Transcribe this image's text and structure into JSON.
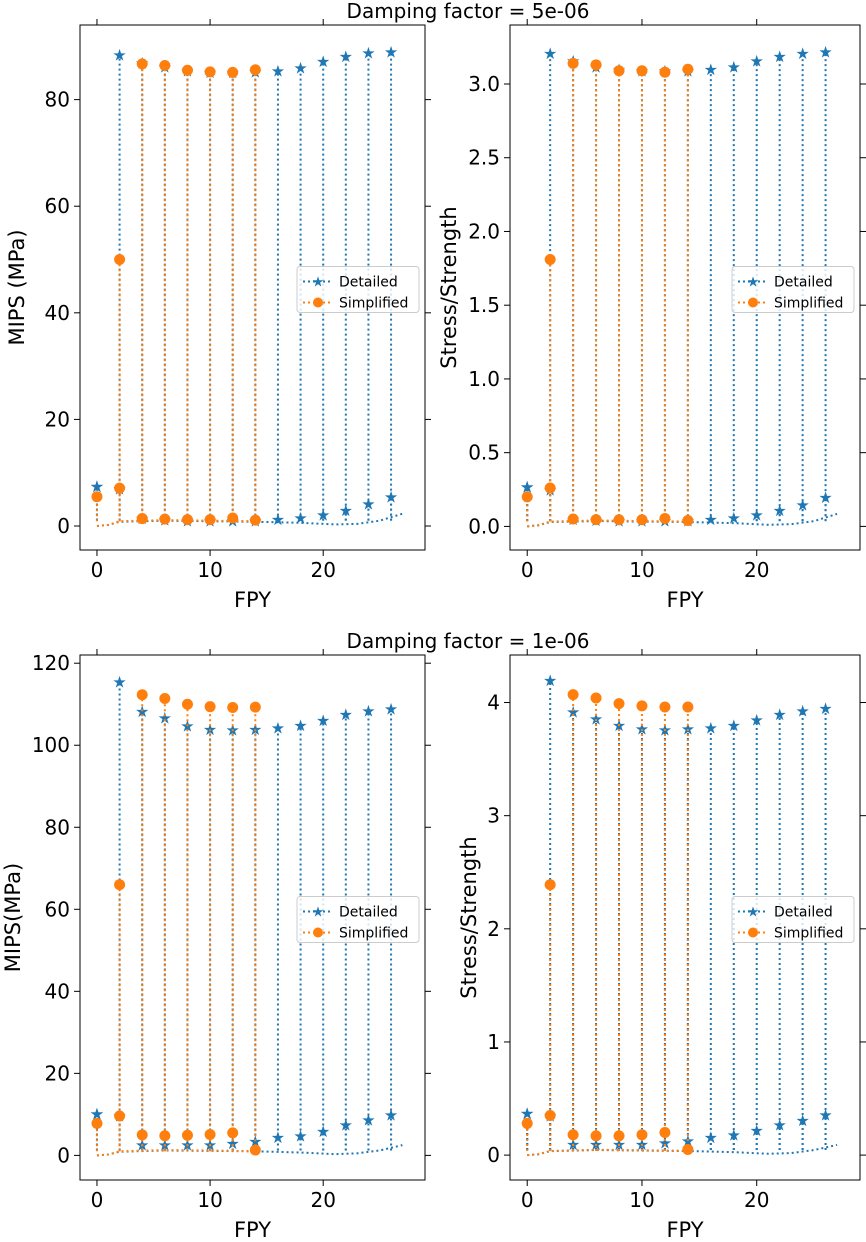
{
  "figure_titles": [
    "Damping factor = 5e-06",
    "Damping factor = 1e-06"
  ],
  "legend_entries": [
    "Detailed",
    "Simplified"
  ],
  "colors": {
    "detailed": "#1f77b4",
    "simplified": "#ff7f0e"
  },
  "chart_data": [
    {
      "type": "line",
      "panel": "top-left",
      "xlabel": "FPY",
      "ylabel": "MIPS (MPa)",
      "xlim": [
        -1.5,
        29
      ],
      "ylim": [
        -4.5,
        94
      ],
      "xticks": [
        0,
        10,
        20
      ],
      "yticks": [
        0,
        20,
        40,
        60,
        80
      ],
      "xtick_labels": [
        "0",
        "10",
        "20"
      ],
      "ytick_labels": [
        "0",
        "20",
        "40",
        "60",
        "80"
      ],
      "legend": "center-right",
      "grid": false,
      "detailed": {
        "name": "Detailed",
        "spikes": [
          [
            0,
            7.5
          ],
          [
            2,
            88.5
          ],
          [
            4,
            87
          ],
          [
            6,
            86.2
          ],
          [
            8,
            85.5
          ],
          [
            10,
            85.2
          ],
          [
            12,
            85.2
          ],
          [
            14,
            85.3
          ],
          [
            16,
            85.5
          ],
          [
            18,
            86
          ],
          [
            20,
            87.2
          ],
          [
            22,
            88.2
          ],
          [
            24,
            88.8
          ],
          [
            26,
            89
          ]
        ],
        "spike_baseline": 1.0,
        "secondary": [
          [
            0,
            7.5
          ],
          [
            2,
            7.0
          ],
          [
            4,
            1.5
          ],
          [
            6,
            1.2
          ],
          [
            8,
            1.0
          ],
          [
            10,
            1.0
          ],
          [
            12,
            1.0
          ],
          [
            14,
            1.0
          ],
          [
            16,
            1.3
          ],
          [
            18,
            1.6
          ],
          [
            20,
            2.2
          ],
          [
            22,
            3.0
          ],
          [
            24,
            4.2
          ],
          [
            26,
            5.5
          ]
        ],
        "base": [
          [
            0,
            0
          ],
          [
            1,
            0.2
          ],
          [
            2,
            0.8
          ],
          [
            6,
            1.0
          ],
          [
            10,
            0.9
          ],
          [
            14,
            0.8
          ],
          [
            18,
            0.6
          ],
          [
            21,
            0.3
          ],
          [
            23,
            0.4
          ],
          [
            25,
            1.0
          ],
          [
            27,
            2.3
          ]
        ]
      },
      "simplified": {
        "name": "Simplified",
        "spikes": [
          [
            4,
            86.7
          ],
          [
            6,
            86.4
          ],
          [
            8,
            85.5
          ],
          [
            10,
            85.2
          ],
          [
            12,
            85.1
          ],
          [
            14,
            85.6
          ]
        ],
        "secondary": [
          [
            0,
            5.5
          ],
          [
            2,
            50
          ],
          [
            2,
            7.1
          ],
          [
            4,
            1.4
          ],
          [
            6,
            1.3
          ],
          [
            8,
            1.2
          ],
          [
            10,
            1.2
          ],
          [
            12,
            1.5
          ],
          [
            14,
            1.1
          ]
        ],
        "base": [
          [
            0,
            0
          ],
          [
            1,
            0.2
          ],
          [
            2,
            0.9
          ],
          [
            6,
            1.1
          ],
          [
            10,
            1.0
          ],
          [
            14,
            0.9
          ]
        ]
      }
    },
    {
      "type": "line",
      "panel": "top-right",
      "xlabel": "FPY",
      "ylabel": "Stress/Strength",
      "xlim": [
        -1.5,
        29
      ],
      "ylim": [
        -0.16,
        3.4
      ],
      "xticks": [
        0,
        10,
        20
      ],
      "yticks": [
        0,
        0.5,
        1,
        1.5,
        2,
        2.5,
        3
      ],
      "xtick_labels": [
        "0",
        "10",
        "20"
      ],
      "ytick_labels": [
        "0.0",
        "0.5",
        "1.0",
        "1.5",
        "2.0",
        "2.5",
        "3.0"
      ],
      "legend": "center-right",
      "grid": false,
      "detailed": {
        "name": "Detailed",
        "spikes": [
          [
            0,
            0.27
          ],
          [
            2,
            3.21
          ],
          [
            4,
            3.16
          ],
          [
            6,
            3.12
          ],
          [
            8,
            3.1
          ],
          [
            10,
            3.09
          ],
          [
            12,
            3.09
          ],
          [
            14,
            3.09
          ],
          [
            16,
            3.1
          ],
          [
            18,
            3.12
          ],
          [
            20,
            3.16
          ],
          [
            22,
            3.19
          ],
          [
            24,
            3.21
          ],
          [
            26,
            3.22
          ]
        ],
        "spike_baseline": 0.036,
        "secondary": [
          [
            0,
            0.27
          ],
          [
            2,
            0.25
          ],
          [
            4,
            0.05
          ],
          [
            6,
            0.045
          ],
          [
            8,
            0.04
          ],
          [
            10,
            0.04
          ],
          [
            12,
            0.04
          ],
          [
            14,
            0.04
          ],
          [
            16,
            0.05
          ],
          [
            18,
            0.06
          ],
          [
            20,
            0.08
          ],
          [
            22,
            0.11
          ],
          [
            24,
            0.15
          ],
          [
            26,
            0.2
          ]
        ],
        "base": [
          [
            0,
            0
          ],
          [
            1,
            0.008
          ],
          [
            2,
            0.03
          ],
          [
            6,
            0.036
          ],
          [
            10,
            0.033
          ],
          [
            14,
            0.03
          ],
          [
            18,
            0.022
          ],
          [
            21,
            0.011
          ],
          [
            23,
            0.015
          ],
          [
            25,
            0.036
          ],
          [
            27,
            0.085
          ]
        ]
      },
      "simplified": {
        "name": "Simplified",
        "spikes": [
          [
            4,
            3.14
          ],
          [
            6,
            3.13
          ],
          [
            8,
            3.09
          ],
          [
            10,
            3.09
          ],
          [
            12,
            3.08
          ],
          [
            14,
            3.1
          ]
        ],
        "secondary": [
          [
            0,
            0.2
          ],
          [
            2,
            1.81
          ],
          [
            2,
            0.26
          ],
          [
            4,
            0.05
          ],
          [
            6,
            0.046
          ],
          [
            8,
            0.045
          ],
          [
            10,
            0.045
          ],
          [
            12,
            0.054
          ],
          [
            14,
            0.04
          ]
        ],
        "base": [
          [
            0,
            0
          ],
          [
            1,
            0.008
          ],
          [
            2,
            0.033
          ],
          [
            6,
            0.04
          ],
          [
            10,
            0.036
          ],
          [
            14,
            0.033
          ]
        ]
      }
    },
    {
      "type": "line",
      "panel": "bottom-left",
      "xlabel": "FPY",
      "ylabel": "MIPS(MPa)",
      "xlim": [
        -1.5,
        29
      ],
      "ylim": [
        -6,
        122
      ],
      "xticks": [
        0,
        10,
        20
      ],
      "yticks": [
        0,
        20,
        40,
        60,
        80,
        100,
        120
      ],
      "xtick_labels": [
        "0",
        "10",
        "20"
      ],
      "ytick_labels": [
        "0",
        "20",
        "40",
        "60",
        "80",
        "100",
        "120"
      ],
      "legend": "center-right",
      "grid": false,
      "detailed": {
        "name": "Detailed",
        "spikes": [
          [
            0,
            10.2
          ],
          [
            2,
            115.5
          ],
          [
            4,
            108.3
          ],
          [
            6,
            106.8
          ],
          [
            8,
            104.8
          ],
          [
            10,
            104.0
          ],
          [
            12,
            103.8
          ],
          [
            14,
            104.0
          ],
          [
            16,
            104.3
          ],
          [
            18,
            104.9
          ],
          [
            20,
            106.2
          ],
          [
            22,
            107.6
          ],
          [
            24,
            108.5
          ],
          [
            26,
            109.0
          ]
        ],
        "spike_baseline": 1.2,
        "secondary": [
          [
            0,
            10.2
          ],
          [
            2,
            9.7
          ],
          [
            4,
            2.6
          ],
          [
            6,
            2.6
          ],
          [
            8,
            2.6
          ],
          [
            10,
            2.7
          ],
          [
            12,
            3.0
          ],
          [
            14,
            3.5
          ],
          [
            16,
            4.5
          ],
          [
            18,
            4.8
          ],
          [
            20,
            6.0
          ],
          [
            22,
            7.5
          ],
          [
            24,
            8.8
          ],
          [
            26,
            10.0
          ]
        ],
        "base": [
          [
            0,
            0
          ],
          [
            1,
            0.2
          ],
          [
            2,
            0.9
          ],
          [
            6,
            1.2
          ],
          [
            10,
            1.1
          ],
          [
            14,
            1.0
          ],
          [
            18,
            0.7
          ],
          [
            21,
            0.3
          ],
          [
            23,
            0.5
          ],
          [
            25,
            1.2
          ],
          [
            27,
            2.5
          ]
        ]
      },
      "simplified": {
        "name": "Simplified",
        "spikes": [
          [
            4,
            112.3
          ],
          [
            6,
            111.4
          ],
          [
            8,
            110.0
          ],
          [
            10,
            109.4
          ],
          [
            12,
            109.2
          ],
          [
            14,
            109.3
          ]
        ],
        "secondary": [
          [
            0,
            7.8
          ],
          [
            2,
            66.0
          ],
          [
            2,
            9.6
          ],
          [
            4,
            5.0
          ],
          [
            6,
            4.8
          ],
          [
            8,
            4.9
          ],
          [
            10,
            5.1
          ],
          [
            12,
            5.5
          ],
          [
            14,
            1.3
          ]
        ],
        "base": [
          [
            0,
            0
          ],
          [
            1,
            0.2
          ],
          [
            2,
            1.0
          ],
          [
            6,
            1.3
          ],
          [
            10,
            1.2
          ],
          [
            14,
            1.0
          ]
        ]
      }
    },
    {
      "type": "line",
      "panel": "bottom-right",
      "xlabel": "FPY",
      "ylabel": "Stress/Strength",
      "xlim": [
        -1.5,
        29
      ],
      "ylim": [
        -0.22,
        4.42
      ],
      "xticks": [
        0,
        10,
        20
      ],
      "yticks": [
        0,
        1,
        2,
        3,
        4
      ],
      "xtick_labels": [
        "0",
        "10",
        "20"
      ],
      "ytick_labels": [
        "0",
        "1",
        "2",
        "3",
        "4"
      ],
      "legend": "center-right",
      "grid": false,
      "detailed": {
        "name": "Detailed",
        "spikes": [
          [
            0,
            0.37
          ],
          [
            2,
            4.2
          ],
          [
            4,
            3.92
          ],
          [
            6,
            3.86
          ],
          [
            8,
            3.8
          ],
          [
            10,
            3.77
          ],
          [
            12,
            3.76
          ],
          [
            14,
            3.77
          ],
          [
            16,
            3.78
          ],
          [
            18,
            3.8
          ],
          [
            20,
            3.85
          ],
          [
            22,
            3.9
          ],
          [
            24,
            3.93
          ],
          [
            26,
            3.95
          ]
        ],
        "spike_baseline": 0.045,
        "secondary": [
          [
            0,
            0.37
          ],
          [
            2,
            0.35
          ],
          [
            4,
            0.1
          ],
          [
            6,
            0.1
          ],
          [
            8,
            0.1
          ],
          [
            10,
            0.1
          ],
          [
            12,
            0.11
          ],
          [
            14,
            0.13
          ],
          [
            16,
            0.16
          ],
          [
            18,
            0.18
          ],
          [
            20,
            0.22
          ],
          [
            22,
            0.27
          ],
          [
            24,
            0.31
          ],
          [
            26,
            0.36
          ]
        ],
        "base": [
          [
            0,
            0
          ],
          [
            1,
            0.008
          ],
          [
            2,
            0.035
          ],
          [
            6,
            0.045
          ],
          [
            10,
            0.04
          ],
          [
            14,
            0.036
          ],
          [
            18,
            0.026
          ],
          [
            21,
            0.012
          ],
          [
            23,
            0.018
          ],
          [
            25,
            0.045
          ],
          [
            27,
            0.09
          ]
        ]
      },
      "simplified": {
        "name": "Simplified",
        "spikes": [
          [
            4,
            4.07
          ],
          [
            6,
            4.04
          ],
          [
            8,
            3.99
          ],
          [
            10,
            3.97
          ],
          [
            12,
            3.96
          ],
          [
            14,
            3.96
          ]
        ],
        "secondary": [
          [
            0,
            0.28
          ],
          [
            2,
            2.39
          ],
          [
            2,
            0.35
          ],
          [
            4,
            0.18
          ],
          [
            6,
            0.17
          ],
          [
            8,
            0.17
          ],
          [
            10,
            0.18
          ],
          [
            12,
            0.2
          ],
          [
            14,
            0.05
          ]
        ],
        "base": [
          [
            0,
            0
          ],
          [
            1,
            0.008
          ],
          [
            2,
            0.036
          ],
          [
            6,
            0.047
          ],
          [
            10,
            0.043
          ],
          [
            14,
            0.037
          ]
        ]
      }
    }
  ]
}
